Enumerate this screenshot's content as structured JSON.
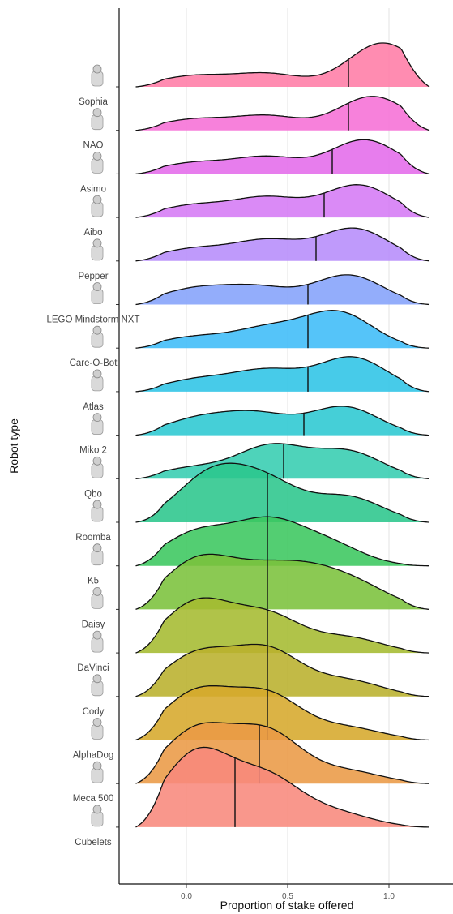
{
  "chart_data": {
    "type": "ridgeline",
    "xlabel": "Proportion of stake offered",
    "ylabel": "Robot type",
    "xlim": [
      -0.33,
      1.3
    ],
    "x_ticks": [
      0.0,
      0.5,
      1.0
    ],
    "x_tick_labels": [
      "0.0",
      "0.5",
      "1.0"
    ],
    "grid": "vertical",
    "legend": "none",
    "categories": [
      {
        "name": "Sophia",
        "median": 0.8,
        "color": "#FF7CA6",
        "peaks": [
          [
            0.03,
            0.18
          ],
          [
            0.4,
            0.22
          ],
          [
            0.97,
            0.75
          ]
        ]
      },
      {
        "name": "NAO",
        "median": 0.8,
        "color": "#F66FD6",
        "peaks": [
          [
            0.03,
            0.18
          ],
          [
            0.4,
            0.24
          ],
          [
            0.92,
            0.58
          ]
        ]
      },
      {
        "name": "Asimo",
        "median": 0.72,
        "color": "#E46BEA",
        "peaks": [
          [
            0.03,
            0.18
          ],
          [
            0.4,
            0.28
          ],
          [
            0.88,
            0.58
          ]
        ]
      },
      {
        "name": "Aibo",
        "median": 0.68,
        "color": "#D57AF5",
        "peaks": [
          [
            0.03,
            0.2
          ],
          [
            0.4,
            0.33
          ],
          [
            0.85,
            0.55
          ]
        ]
      },
      {
        "name": "Pepper",
        "median": 0.64,
        "color": "#B68CFB",
        "peaks": [
          [
            0.03,
            0.2
          ],
          [
            0.4,
            0.34
          ],
          [
            0.83,
            0.55
          ]
        ]
      },
      {
        "name": "LEGO Mindstorm NXT",
        "median": 0.6,
        "color": "#84A2FA",
        "peaks": [
          [
            0.03,
            0.25
          ],
          [
            0.35,
            0.28
          ],
          [
            0.8,
            0.5
          ]
        ]
      },
      {
        "name": "Care-O-Bot",
        "median": 0.6,
        "color": "#3DBCF8",
        "peaks": [
          [
            0.03,
            0.18
          ],
          [
            0.4,
            0.32
          ],
          [
            0.75,
            0.6
          ]
        ]
      },
      {
        "name": "Atlas",
        "median": 0.6,
        "color": "#2EC4E6",
        "peaks": [
          [
            0.05,
            0.2
          ],
          [
            0.4,
            0.35
          ],
          [
            0.82,
            0.58
          ]
        ]
      },
      {
        "name": "Miko 2",
        "median": 0.58,
        "color": "#2BC8D1",
        "peaks": [
          [
            0.05,
            0.26
          ],
          [
            0.35,
            0.34
          ],
          [
            0.78,
            0.48
          ]
        ]
      },
      {
        "name": "Qbo",
        "median": 0.48,
        "color": "#36CDB0",
        "peaks": [
          [
            0.03,
            0.18
          ],
          [
            0.42,
            0.55
          ],
          [
            0.8,
            0.45
          ]
        ]
      },
      {
        "name": "Roomba",
        "median": 0.4,
        "color": "#2BC68C",
        "peaks": [
          [
            0.12,
            0.78
          ],
          [
            0.4,
            0.62
          ],
          [
            0.8,
            0.42
          ]
        ]
      },
      {
        "name": "K5",
        "median": 0.4,
        "color": "#3BC75E",
        "peaks": [
          [
            0.05,
            0.55
          ],
          [
            0.4,
            0.7
          ],
          [
            0.7,
            0.35
          ]
        ]
      },
      {
        "name": "Daisy",
        "median": 0.4,
        "color": "#7BC13B",
        "peaks": [
          [
            0.05,
            0.8
          ],
          [
            0.35,
            0.5
          ],
          [
            0.6,
            0.52
          ],
          [
            0.85,
            0.35
          ]
        ]
      },
      {
        "name": "DaVinci",
        "median": 0.4,
        "color": "#A5BB30",
        "peaks": [
          [
            0.05,
            0.85
          ],
          [
            0.4,
            0.62
          ],
          [
            0.8,
            0.25
          ]
        ]
      },
      {
        "name": "Cody",
        "median": 0.4,
        "color": "#B9B02C",
        "peaks": [
          [
            0.05,
            0.7
          ],
          [
            0.4,
            0.77
          ],
          [
            0.8,
            0.26
          ]
        ]
      },
      {
        "name": "AlphaDog",
        "median": 0.4,
        "color": "#D6A82B",
        "peaks": [
          [
            0.05,
            0.8
          ],
          [
            0.4,
            0.75
          ],
          [
            0.8,
            0.2
          ]
        ]
      },
      {
        "name": "Meca 500",
        "median": 0.36,
        "color": "#EA9A45",
        "peaks": [
          [
            0.05,
            0.9
          ],
          [
            0.4,
            0.85
          ],
          [
            0.8,
            0.2
          ]
        ]
      },
      {
        "name": "Cubelets",
        "median": 0.24,
        "color": "#F8897C",
        "peaks": [
          [
            0.05,
            1.25
          ],
          [
            0.4,
            0.8
          ],
          [
            0.75,
            0.22
          ]
        ]
      }
    ]
  }
}
